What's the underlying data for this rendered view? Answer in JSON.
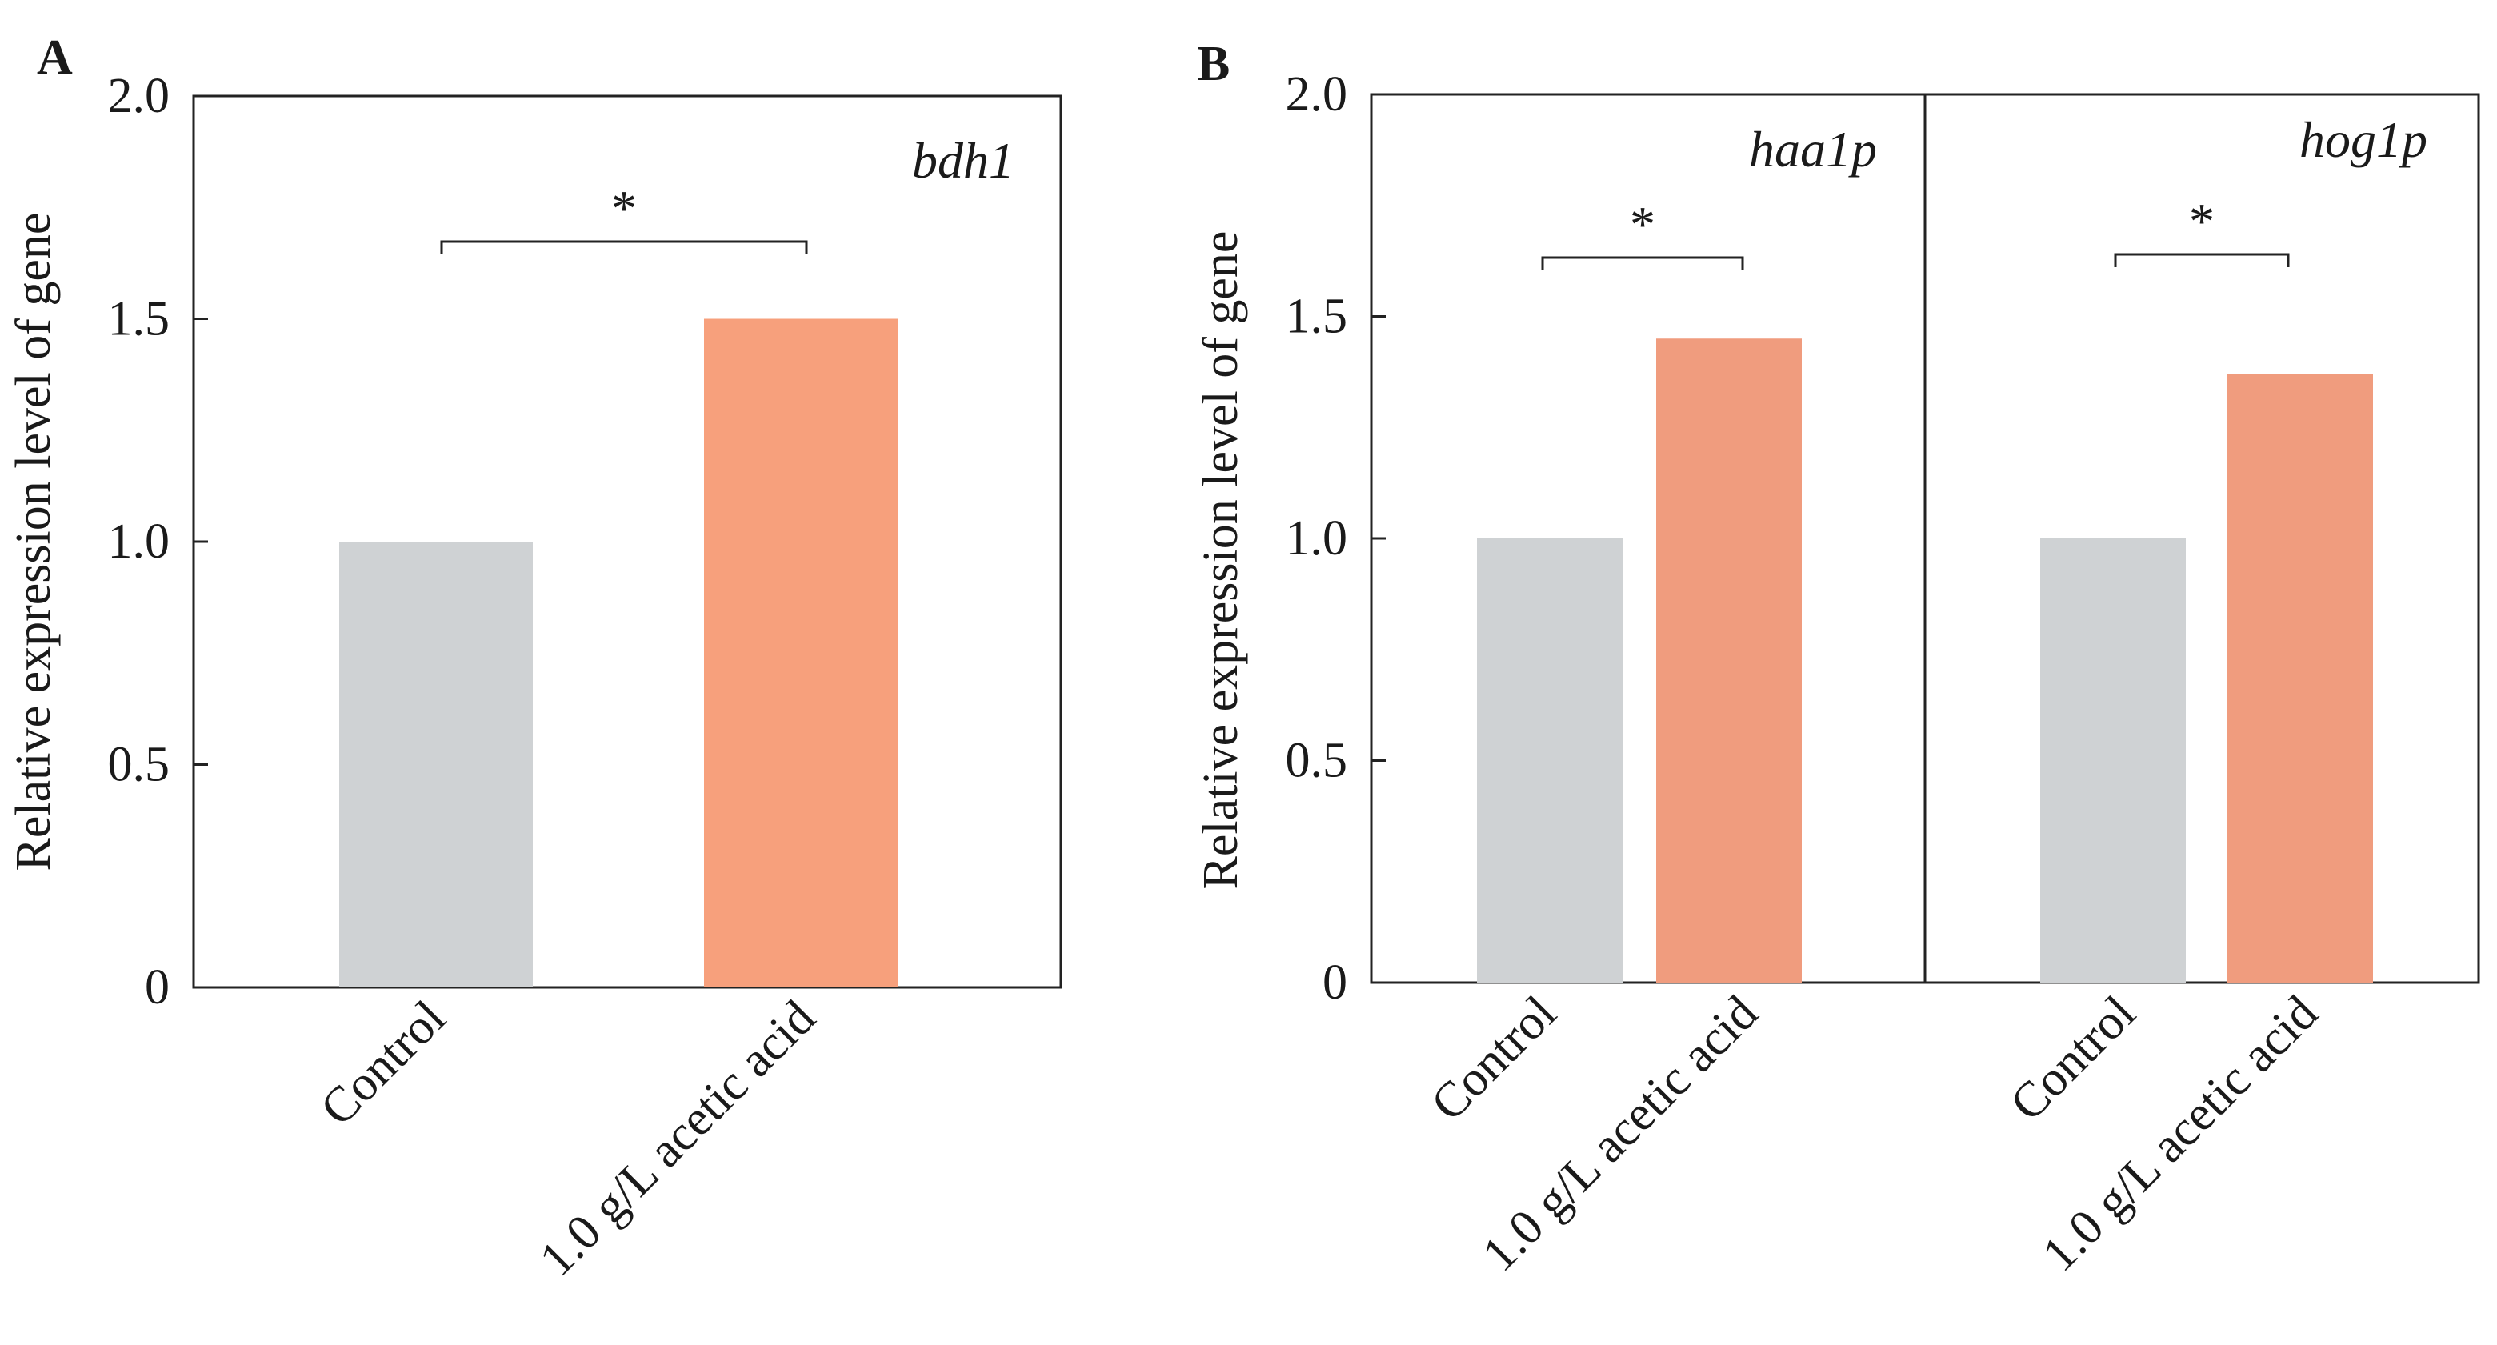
{
  "figure": {
    "colors": {
      "control": "#cfd2d4",
      "treatment_a": "#f7a07c",
      "treatment_b": "#f09c7e",
      "axis": "#222222"
    }
  },
  "chart_data": [
    {
      "panel_label": "A",
      "type": "bar",
      "ylabel": "Relative expression level of gene",
      "ylim": [
        0,
        2.0
      ],
      "yticks": [
        "0",
        "0.5",
        "1.0",
        "1.5",
        "2.0"
      ],
      "groups": [
        {
          "gene": "bdh1",
          "categories": [
            "Control",
            "1.0 g/L acetic acid"
          ],
          "values": [
            1.0,
            1.5
          ],
          "significance": "*"
        }
      ]
    },
    {
      "panel_label": "B",
      "type": "bar",
      "ylabel": "Relative expression level of gene",
      "ylim": [
        0,
        2.0
      ],
      "yticks": [
        "0",
        "0.5",
        "1.0",
        "1.5",
        "2.0"
      ],
      "groups": [
        {
          "gene": "haa1p",
          "categories": [
            "Control",
            "1.0 g/L acetic acid"
          ],
          "values": [
            1.0,
            1.45
          ],
          "significance": "*"
        },
        {
          "gene": "hog1p",
          "categories": [
            "Control",
            "1.0 g/L acetic acid"
          ],
          "values": [
            1.0,
            1.37
          ],
          "significance": "*"
        }
      ]
    }
  ]
}
